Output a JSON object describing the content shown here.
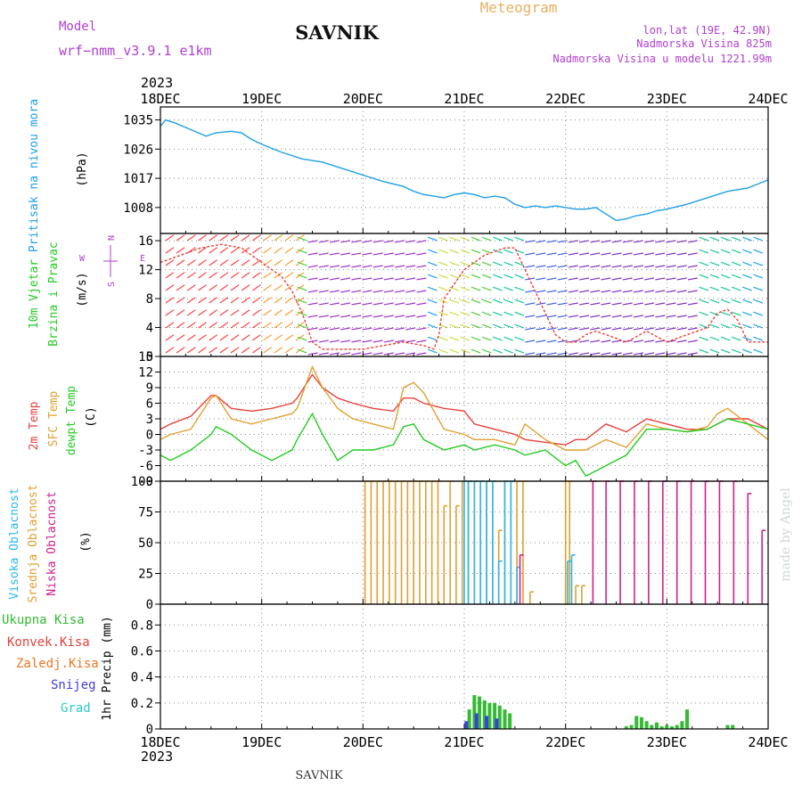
{
  "header": {
    "app_title": "Meteogram",
    "model_label": "Model",
    "model_name": "wrf−nmm_v3.9.1  e1km",
    "station": "SAVNIK",
    "lonlat": "lon,lat (19E, 42.9N)",
    "elevation": "Nadmorska Visina 825m",
    "model_elevation": "Nadmorska Visina u modelu 1221.99m",
    "year_top": "2023",
    "year_bottom": "2023",
    "footer_station": "SAVNIK",
    "watermark": "made by Angel"
  },
  "colors": {
    "pressure": "#1ea0e6",
    "temp2m": "#e8413c",
    "sfc_temp": "#e0a030",
    "dewpt": "#22cc22",
    "high_cloud": "#2ab8e8",
    "mid_cloud": "#e0a030",
    "low_cloud": "#d0208a",
    "total_precip": "#33bb33",
    "snow": "#4040dd",
    "purple_text": "#b040d0",
    "grid": "#999999"
  },
  "chart_data": [
    {
      "type": "line",
      "name": "pressure",
      "ylabel": [
        "Pritisak na nivou mora",
        "(hPa)"
      ],
      "x_ticks": [
        "18DEC",
        "19DEC",
        "20DEC",
        "21DEC",
        "22DEC",
        "23DEC",
        "24DEC"
      ],
      "y_ticks": [
        1008,
        1017,
        1026,
        1035
      ],
      "ylim": [
        1000,
        1039
      ],
      "series": [
        {
          "color": "#1ea0e6",
          "x": [
            0,
            0.05,
            0.15,
            0.3,
            0.45,
            0.55,
            0.7,
            0.8,
            0.9,
            1.0,
            1.2,
            1.4,
            1.6,
            1.8,
            2.0,
            2.2,
            2.4,
            2.5,
            2.6,
            2.7,
            2.8,
            2.9,
            3.0,
            3.1,
            3.2,
            3.3,
            3.4,
            3.5,
            3.6,
            3.7,
            3.8,
            3.9,
            4.0,
            4.1,
            4.2,
            4.3,
            4.4,
            4.5,
            4.6,
            4.7,
            4.8,
            4.9,
            5.0,
            5.2,
            5.4,
            5.6,
            5.8,
            6.0
          ],
          "y": [
            1033,
            1035,
            1034,
            1032,
            1030,
            1031,
            1031.5,
            1031,
            1029,
            1027.5,
            1025,
            1023,
            1022,
            1020,
            1018,
            1016,
            1014.5,
            1013,
            1012,
            1011.5,
            1011,
            1012,
            1012.5,
            1012,
            1011,
            1011.5,
            1011,
            1009,
            1008,
            1008.5,
            1008,
            1008.5,
            1008,
            1007.5,
            1007.5,
            1008,
            1006,
            1004,
            1004.5,
            1005.5,
            1006,
            1007,
            1007.5,
            1009,
            1011,
            1013,
            1014,
            1016.5
          ]
        }
      ]
    },
    {
      "type": "line",
      "name": "wind",
      "ylabel": [
        "10m Vjetar",
        "Brzina i Pravac",
        "(m/s)"
      ],
      "compass": [
        "N",
        "W",
        "E",
        "S"
      ],
      "y_ticks": [
        0,
        4,
        8,
        12,
        16
      ],
      "ylim": [
        0,
        17
      ],
      "series": [
        {
          "color": "#e8413c",
          "x": [
            0,
            0.2,
            0.4,
            0.6,
            0.8,
            1.0,
            1.1,
            1.2,
            1.3,
            1.4,
            1.5,
            1.6,
            1.7,
            1.8,
            2.0,
            2.2,
            2.4,
            2.6,
            2.7,
            2.75,
            2.8,
            3.0,
            3.2,
            3.4,
            3.5,
            3.6,
            3.7,
            3.8,
            3.9,
            4.0,
            4.1,
            4.2,
            4.3,
            4.4,
            4.6,
            4.8,
            5.0,
            5.2,
            5.4,
            5.5,
            5.6,
            5.7,
            5.8,
            6.0
          ],
          "y": [
            13,
            14,
            15,
            15.5,
            15,
            13,
            12,
            11,
            9,
            6,
            2,
            1,
            1,
            1,
            1,
            1.5,
            2,
            1.5,
            1,
            3,
            8,
            12,
            14,
            15,
            15,
            12,
            9,
            6,
            3,
            2,
            2,
            3,
            3.5,
            3,
            2,
            3.5,
            2,
            3,
            4,
            6,
            6.5,
            5,
            2,
            2
          ]
        }
      ]
    },
    {
      "type": "line",
      "name": "temperature",
      "ylabel": [
        "2m Temp",
        "SFC Temp",
        "dewpt Temp",
        "(C)"
      ],
      "y_ticks": [
        -9,
        -6,
        -3,
        0,
        3,
        6,
        9,
        12,
        15
      ],
      "ylim": [
        -9,
        15
      ],
      "series": [
        {
          "name": "2m Temp",
          "color": "#e8413c",
          "x": [
            0,
            0.1,
            0.3,
            0.5,
            0.55,
            0.7,
            0.9,
            1.1,
            1.3,
            1.35,
            1.5,
            1.6,
            1.75,
            1.9,
            2.1,
            2.3,
            2.4,
            2.5,
            2.6,
            2.8,
            3.0,
            3.1,
            3.3,
            3.5,
            3.6,
            3.8,
            4.0,
            4.1,
            4.2,
            4.4,
            4.6,
            4.8,
            5.0,
            5.2,
            5.4,
            5.5,
            5.6,
            5.8,
            6.0
          ],
          "y": [
            1,
            2,
            3.5,
            7.5,
            7.5,
            5,
            4.5,
            5,
            6,
            7,
            11.5,
            9,
            7,
            6,
            5,
            4.5,
            7,
            7,
            6,
            5,
            4.5,
            2,
            1,
            0,
            -1,
            -1.5,
            -2,
            -1,
            -1,
            2,
            0.5,
            3,
            2,
            1,
            1,
            2,
            3,
            3,
            1
          ]
        },
        {
          "name": "SFC Temp",
          "color": "#e0a030",
          "x": [
            0,
            0.1,
            0.3,
            0.5,
            0.55,
            0.7,
            0.9,
            1.1,
            1.3,
            1.35,
            1.5,
            1.6,
            1.75,
            1.9,
            2.1,
            2.3,
            2.4,
            2.5,
            2.6,
            2.8,
            3.0,
            3.1,
            3.3,
            3.5,
            3.6,
            3.8,
            4.0,
            4.1,
            4.2,
            4.4,
            4.6,
            4.8,
            5.0,
            5.2,
            5.4,
            5.5,
            5.6,
            5.8,
            6.0
          ],
          "y": [
            -1,
            0,
            1,
            7,
            7.5,
            3,
            2,
            3,
            4,
            5,
            13,
            9,
            5,
            3,
            2,
            1,
            9,
            10,
            8,
            1,
            0,
            -1,
            -1,
            -2,
            2,
            -1,
            -3,
            -3,
            -3,
            -1,
            -2.5,
            2,
            1,
            0.5,
            1.5,
            4,
            5,
            2,
            -1
          ]
        },
        {
          "name": "dewpt Temp",
          "color": "#22cc22",
          "x": [
            0,
            0.1,
            0.3,
            0.5,
            0.55,
            0.7,
            0.9,
            1.1,
            1.3,
            1.35,
            1.5,
            1.6,
            1.75,
            1.9,
            2.1,
            2.3,
            2.4,
            2.5,
            2.6,
            2.8,
            3.0,
            3.1,
            3.3,
            3.5,
            3.6,
            3.8,
            4.0,
            4.1,
            4.2,
            4.4,
            4.6,
            4.8,
            5.0,
            5.2,
            5.4,
            5.5,
            5.6,
            5.8,
            6.0
          ],
          "y": [
            -4,
            -5,
            -3,
            0,
            1.5,
            0,
            -3,
            -5,
            -3,
            -1,
            4,
            0,
            -5,
            -3,
            -3,
            -2,
            1.5,
            2,
            -1,
            -3,
            -2,
            -3,
            -2,
            -3,
            -4,
            -3,
            -6,
            -5,
            -8,
            -6,
            -4,
            1,
            1,
            0.5,
            1,
            2,
            3,
            2,
            1
          ]
        }
      ]
    },
    {
      "type": "bar",
      "name": "clouds",
      "ylabel": [
        "Visoka Oblacnost",
        "Srednja Oblacnost",
        "Niska Oblacnost",
        "(%)"
      ],
      "y_ticks": [
        0,
        25,
        50,
        75,
        100
      ],
      "ylim": [
        0,
        100
      ],
      "series": [
        {
          "name": "Srednja Oblacnost",
          "color": "#e0a030",
          "x": [
            2.02,
            2.08,
            2.14,
            2.2,
            2.26,
            2.32,
            2.38,
            2.44,
            2.5,
            2.56,
            2.62,
            2.68,
            2.74,
            2.8,
            2.86,
            2.92,
            2.98,
            3.04,
            3.1,
            3.16,
            3.22,
            3.28,
            3.34,
            3.4,
            3.46,
            3.52,
            3.58,
            3.65,
            4.0,
            4.04,
            4.1,
            4.16
          ],
          "values": [
            100,
            100,
            100,
            100,
            100,
            100,
            100,
            100,
            100,
            100,
            100,
            100,
            100,
            80,
            100,
            80,
            100,
            100,
            100,
            100,
            100,
            100,
            60,
            100,
            100,
            100,
            100,
            10,
            100,
            100,
            15,
            15
          ]
        },
        {
          "name": "Visoka Oblacnost",
          "color": "#2ab8e8",
          "x": [
            3.0,
            3.04,
            3.1,
            3.16,
            3.22,
            3.28,
            3.34,
            3.4,
            3.46,
            3.52,
            4.02,
            4.06
          ],
          "values": [
            100,
            100,
            100,
            100,
            100,
            100,
            35,
            100,
            100,
            30,
            35,
            40
          ]
        },
        {
          "name": "Niska Oblacnost",
          "color": "#d0208a",
          "x": [
            3.55,
            4.27,
            4.4,
            4.54,
            4.68,
            4.82,
            4.96,
            5.1,
            5.24,
            5.38,
            5.52,
            5.66,
            5.8,
            5.94
          ],
          "values": [
            40,
            100,
            100,
            100,
            100,
            100,
            100,
            100,
            100,
            100,
            100,
            100,
            90,
            60
          ]
        }
      ]
    },
    {
      "type": "bar",
      "name": "precipitation",
      "ylabel": [
        "1hr Precip (mm)"
      ],
      "legend": [
        "Ukupna Kisa",
        "Konvek.Kisa",
        "Zaledj.Kisa",
        "Snijeg",
        "Grad"
      ],
      "legend_colors": [
        "#33bb33",
        "#e8413c",
        "#ee7722",
        "#4040dd",
        "#2ac8c8"
      ],
      "y_ticks": [
        0,
        0.2,
        0.4,
        0.6,
        0.8
      ],
      "ylim": [
        0,
        0.96
      ],
      "series": [
        {
          "name": "Ukupna Kisa",
          "color": "#33bb33",
          "x": [
            3.05,
            3.1,
            3.15,
            3.2,
            3.25,
            3.3,
            3.35,
            3.4,
            3.45,
            4.6,
            4.65,
            4.7,
            4.75,
            4.8,
            4.85,
            4.9,
            4.95,
            5.0,
            5.05,
            5.1,
            5.15,
            5.2,
            5.6,
            5.65
          ],
          "values": [
            0.15,
            0.26,
            0.25,
            0.22,
            0.2,
            0.2,
            0.18,
            0.15,
            0.12,
            0.02,
            0.03,
            0.1,
            0.09,
            0.06,
            0.03,
            0.05,
            0.02,
            0.03,
            0.02,
            0.03,
            0.06,
            0.15,
            0.03,
            0.03
          ]
        },
        {
          "name": "Snijeg",
          "color": "#4040dd",
          "x": [
            3.02,
            3.12,
            3.22,
            3.32
          ],
          "values": [
            0.06,
            0.12,
            0.1,
            0.08
          ]
        }
      ]
    }
  ]
}
